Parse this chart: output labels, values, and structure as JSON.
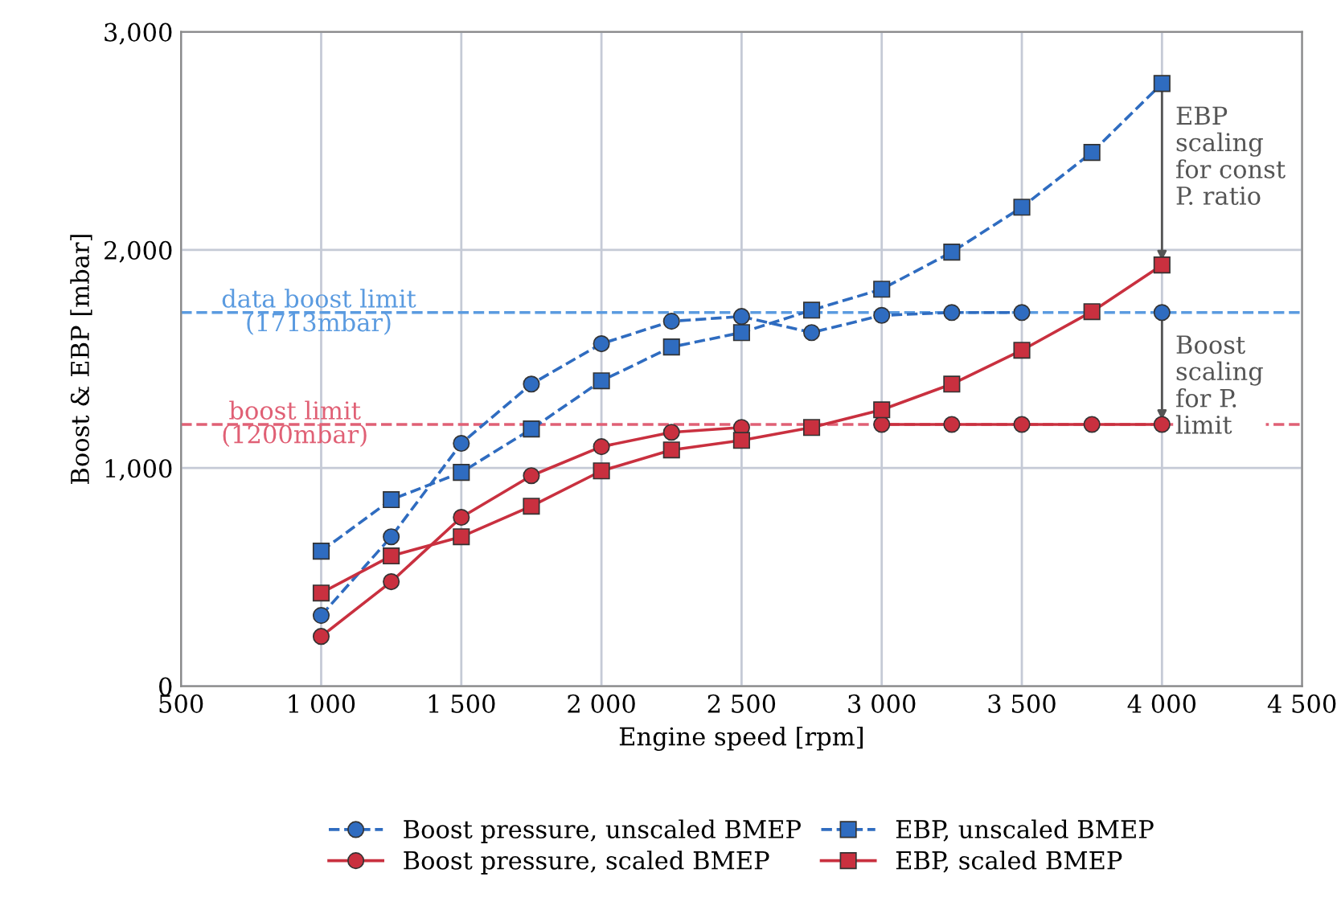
{
  "chart_data": {
    "type": "line",
    "xlabel": "Engine speed [rpm]",
    "ylabel": "Boost & EBP [mbar]",
    "x": [
      1000,
      1250,
      1500,
      1750,
      2000,
      2250,
      2500,
      2750,
      3000,
      3250,
      3500,
      3750,
      4000
    ],
    "series": [
      {
        "name": "Boost pressure, unscaled BMEP",
        "color": "#2f6cc0",
        "marker": "circle",
        "line_style": "dashed",
        "values": [
          324,
          685,
          1113,
          1385,
          1570,
          1673,
          1695,
          1621,
          1700,
          1713,
          1713,
          null,
          1713
        ]
      },
      {
        "name": "EBP, unscaled BMEP",
        "color": "#2f6cc0",
        "marker": "square",
        "line_style": "dashed",
        "values": [
          619,
          855,
          980,
          1179,
          1400,
          1555,
          1621,
          1724,
          1820,
          1990,
          2196,
          2447,
          2763
        ]
      },
      {
        "name": "Boost pressure, scaled BMEP",
        "color": "#c9303f",
        "marker": "circle",
        "line_style": "solid",
        "values": [
          228,
          479,
          774,
          965,
          1098,
          1164,
          1186,
          null,
          1200,
          1200,
          1200,
          1200,
          1200
        ]
      },
      {
        "name": "EBP, scaled BMEP",
        "color": "#c9303f",
        "marker": "square",
        "line_style": "solid",
        "values": [
          427,
          597,
          685,
          825,
          987,
          1083,
          1127,
          1186,
          1267,
          1385,
          1540,
          1717,
          1931
        ]
      }
    ],
    "xlim": [
      500,
      4500
    ],
    "xticks": [
      500,
      {
        "value": 1000,
        "label": "1 000"
      },
      {
        "value": 1500,
        "label": "1 500"
      },
      {
        "value": 2000,
        "label": "2 000"
      },
      {
        "value": 2500,
        "label": "2 500"
      },
      {
        "value": 3000,
        "label": "3 000"
      },
      {
        "value": 3500,
        "label": "3 500"
      },
      {
        "value": 4000,
        "label": "4 000"
      },
      {
        "value": 4500,
        "label": "4 500"
      }
    ],
    "ylim": [
      0,
      3000
    ],
    "yticks": [
      0,
      {
        "value": 1000,
        "label": "1,000"
      },
      {
        "value": 2000,
        "label": "2,000"
      },
      {
        "value": 3000,
        "label": "3,000"
      }
    ],
    "ref_lines": [
      {
        "axis": "y",
        "value": 1713,
        "label": "data boost limit\n(1713mbar)",
        "color": "#5b9be0",
        "line_style": "dashed"
      },
      {
        "axis": "y",
        "value": 1200,
        "label": "boost limit\n(1200mbar)",
        "color": "#e06075",
        "line_style": "dashed"
      }
    ],
    "annotations": [
      {
        "text": "EBP\nscaling\nfor const\nP. ratio",
        "x": 4000,
        "y": 2763
      },
      {
        "text": "Boost\nscaling\nfor P.\nlimit",
        "x": 4000,
        "y": 1713
      }
    ],
    "grid": true,
    "legend": "bottom"
  }
}
